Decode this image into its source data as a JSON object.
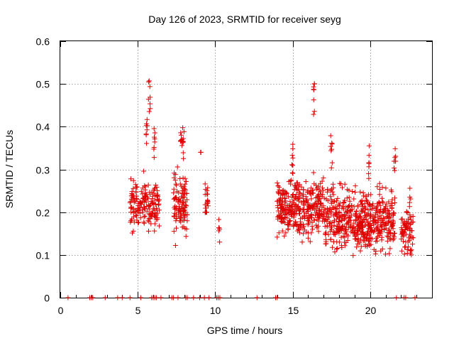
{
  "chart_data": {
    "type": "scatter",
    "title": "Day 126 of 2023, SRMTID for receiver seyg",
    "xlabel": "GPS time / hours",
    "ylabel": "SRMTID / TECUs",
    "xlim": [
      0,
      24
    ],
    "ylim": [
      0,
      0.6
    ],
    "xticks": [
      0,
      5,
      10,
      15,
      20
    ],
    "yticks": [
      0,
      0.1,
      0.2,
      0.3,
      0.4,
      0.5,
      0.6
    ],
    "grid": true,
    "marker": "+",
    "color": "#e00000",
    "series": [
      {
        "name": "SRMTID",
        "clusters": [
          {
            "x": [
              4.5,
              6.4
            ],
            "base": 0.22,
            "sd": 0.04,
            "max": 0.3,
            "min": 0.12,
            "peaks": [
              [
                5.75,
                0.51
              ],
              [
                5.6,
                0.44
              ],
              [
                6.05,
                0.41
              ]
            ],
            "n": 170
          },
          {
            "x": [
              7.3,
              8.2
            ],
            "base": 0.22,
            "sd": 0.05,
            "max": 0.35,
            "min": 0.11,
            "peaks": [
              [
                7.8,
                0.42
              ],
              [
                7.95,
                0.4
              ]
            ],
            "n": 110
          },
          {
            "x": [
              9.0,
              9.1
            ],
            "base": 0.34,
            "sd": 0.0,
            "max": 0.345,
            "min": 0.34,
            "peaks": [],
            "n": 2
          },
          {
            "x": [
              9.35,
              9.55
            ],
            "base": 0.22,
            "sd": 0.04,
            "max": 0.3,
            "min": 0.2,
            "peaks": [],
            "n": 22
          },
          {
            "x": [
              10.2,
              10.3
            ],
            "base": 0.16,
            "sd": 0.02,
            "max": 0.185,
            "min": 0.13,
            "peaks": [],
            "n": 6
          },
          {
            "x": [
              14.0,
              17.0
            ],
            "base": 0.21,
            "sd": 0.045,
            "max": 0.33,
            "min": 0.13,
            "peaks": [
              [
                15.0,
                0.36
              ],
              [
                16.4,
                0.51
              ]
            ],
            "n": 340
          },
          {
            "x": [
              17.0,
              19.6
            ],
            "base": 0.18,
            "sd": 0.05,
            "max": 0.33,
            "min": 0.07,
            "peaks": [
              [
                17.5,
                0.39
              ],
              [
                18.0,
                0.24
              ]
            ],
            "n": 300
          },
          {
            "x": [
              19.6,
              21.6
            ],
            "base": 0.18,
            "sd": 0.05,
            "max": 0.33,
            "min": 0.09,
            "peaks": [
              [
                19.9,
                0.36
              ],
              [
                21.6,
                0.36
              ]
            ],
            "n": 230
          },
          {
            "x": [
              22.0,
              22.8
            ],
            "base": 0.15,
            "sd": 0.04,
            "max": 0.26,
            "min": 0.1,
            "peaks": [
              [
                22.6,
                0.26
              ]
            ],
            "n": 70
          }
        ],
        "zeros": [
          0.5,
          1.9,
          2.0,
          2.1,
          2.9,
          3.7,
          4.0,
          4.5,
          5.2,
          5.9,
          6.0,
          6.1,
          6.2,
          6.5,
          7.2,
          7.3,
          7.6,
          8.1,
          8.2,
          8.6,
          9.0,
          9.3,
          9.6,
          10.1,
          10.2,
          10.3,
          12.7,
          13.9,
          14.0,
          21.7,
          22.2,
          22.3,
          22.9
        ]
      }
    ]
  }
}
